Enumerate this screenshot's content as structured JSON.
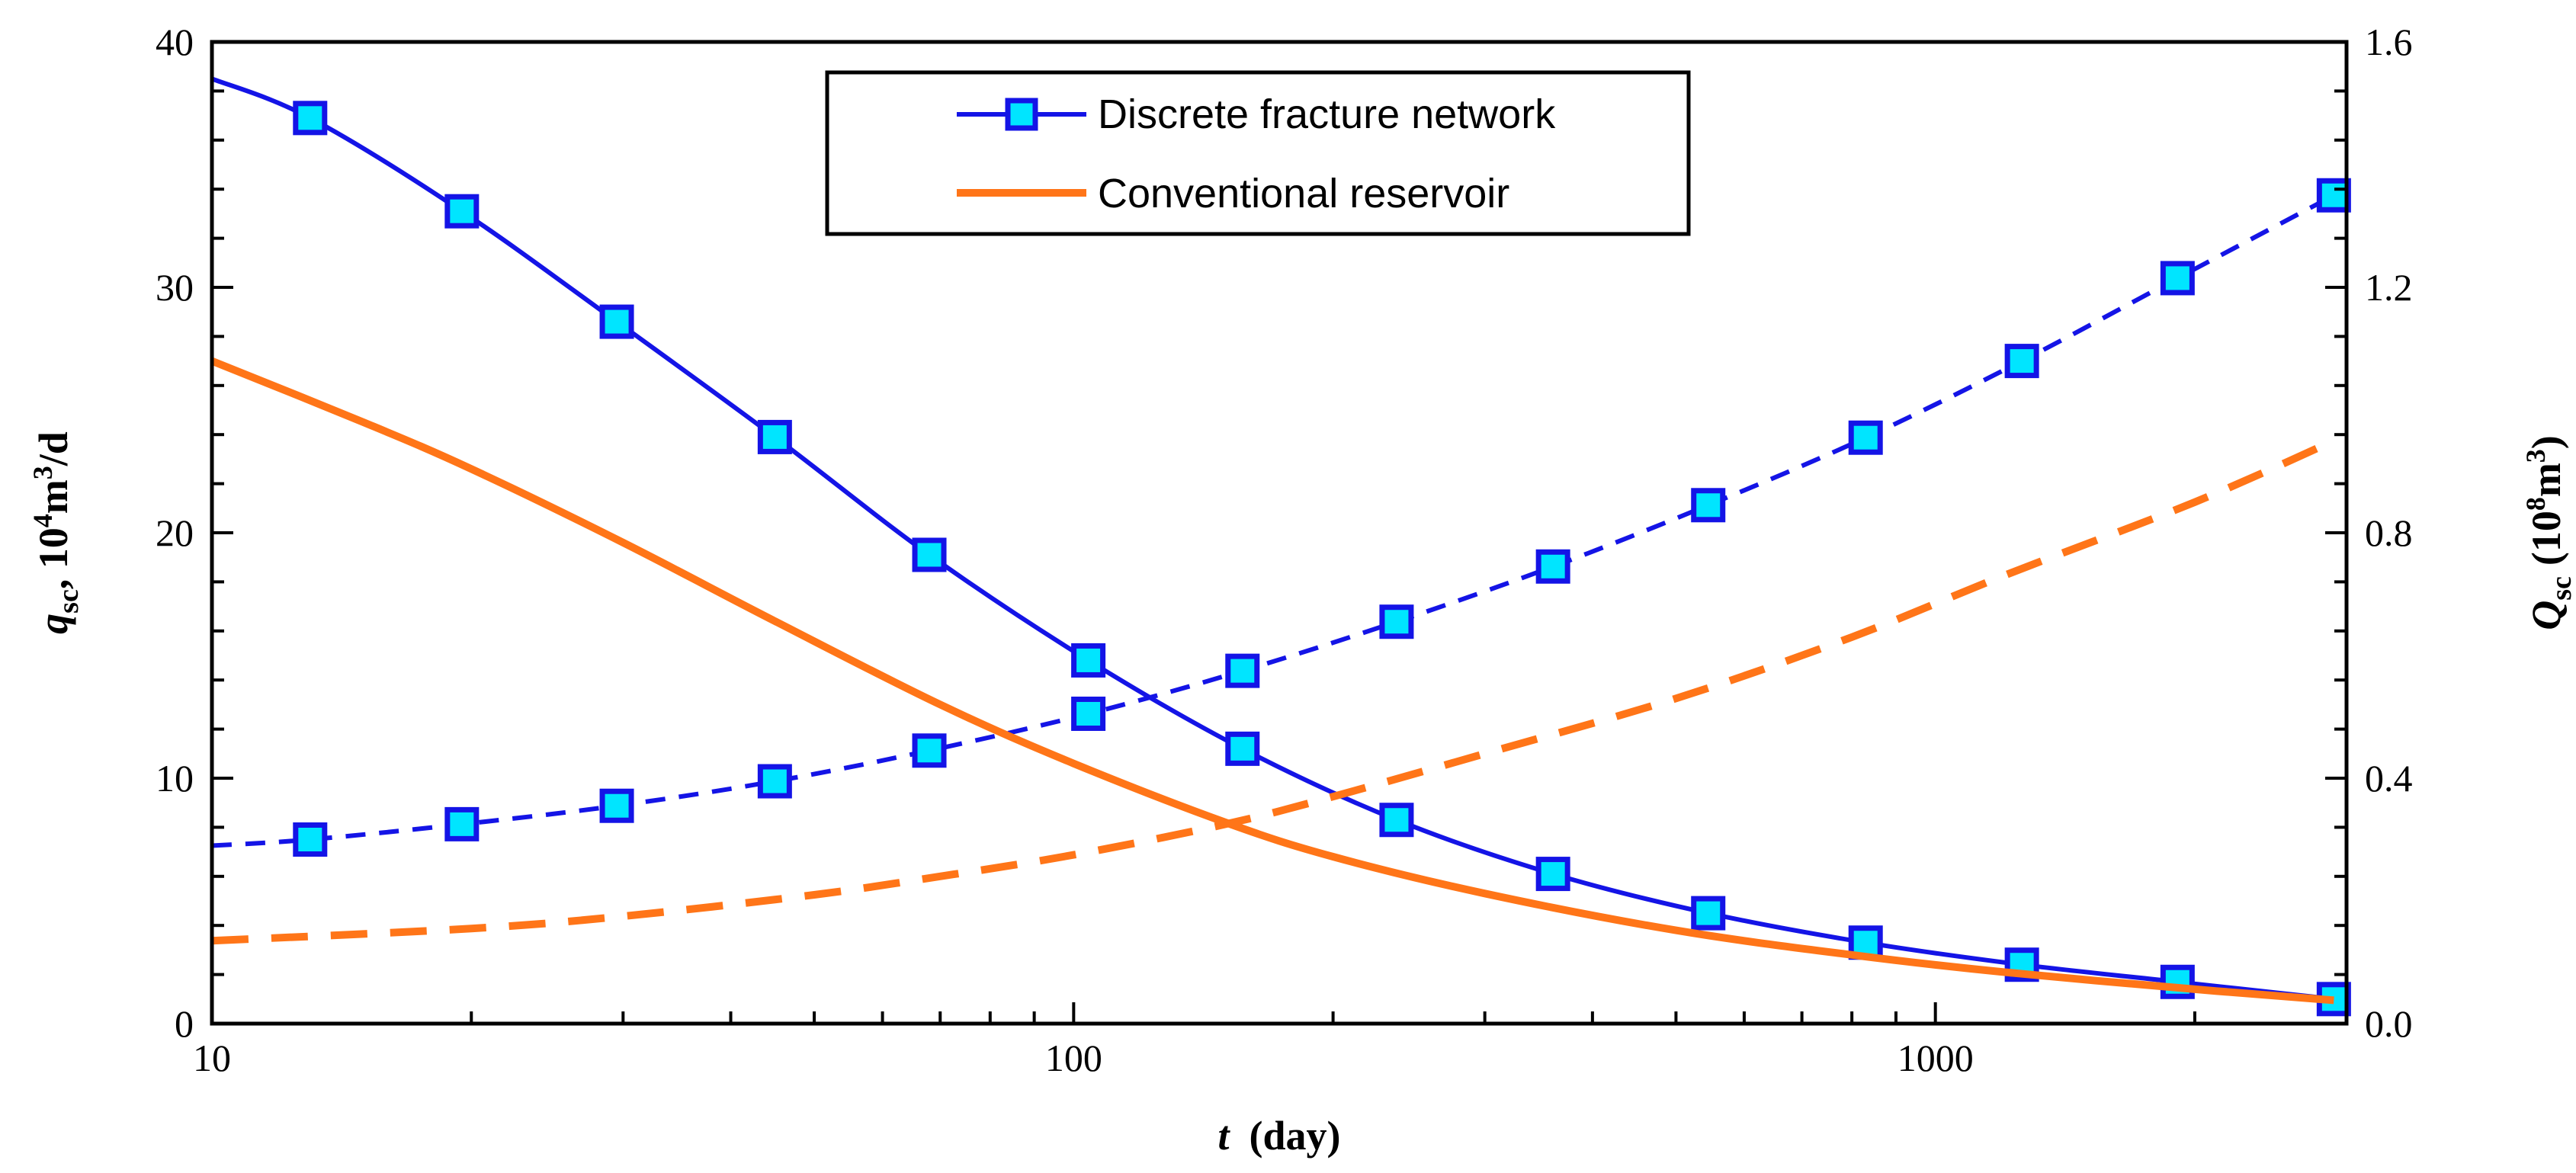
{
  "chart_data": {
    "type": "line",
    "title": "",
    "x_axis": {
      "scale": "log",
      "range": [
        10,
        3000
      ],
      "ticks": [
        10,
        100,
        1000
      ],
      "tick_labels": [
        "10",
        "100",
        "1000"
      ],
      "label_italic": "t",
      "label_rest": "(day)"
    },
    "y_left": {
      "range": [
        0,
        40
      ],
      "ticks": [
        0,
        10,
        20,
        30,
        40
      ],
      "tick_labels": [
        "0",
        "10",
        "20",
        "30",
        "40"
      ],
      "label_var": "q",
      "label_sub": "sc",
      "label_unit_a": ", 10",
      "label_unit_sup": "4",
      "label_unit_b": "m",
      "label_unit_sup2": "3",
      "label_unit_c": "/d"
    },
    "y_right": {
      "range": [
        0,
        1.6
      ],
      "ticks": [
        0,
        0.4,
        0.8,
        1.2,
        1.6
      ],
      "tick_labels": [
        "0.0",
        "0.4",
        "0.8",
        "1.2",
        "1.6"
      ],
      "label_var": "Q",
      "label_sub": "sc",
      "label_unit_a": "(10",
      "label_unit_sup": "8",
      "label_unit_b": "m",
      "label_unit_sup2": "3",
      "label_unit_c": ")"
    },
    "legend": {
      "position": "top-center",
      "entries": [
        {
          "label": "Discrete fracture network",
          "color": "#1414e6",
          "marker": "square"
        },
        {
          "label": "Conventional reservoir",
          "color": "#ff7518",
          "marker": "none"
        }
      ]
    },
    "series": [
      {
        "name": "Discrete fracture network - rate",
        "axis": "left",
        "style": "solid",
        "color": "#1414e6",
        "curve": {
          "x": [
            10,
            13,
            19.5,
            29.5,
            45,
            68,
            104,
            157,
            237,
            360,
            545,
            830,
            1260,
            1910,
            2900
          ],
          "y": [
            38.5,
            36.9,
            33.1,
            28.6,
            23.9,
            19.1,
            14.8,
            11.2,
            8.3,
            6.1,
            4.5,
            3.3,
            2.4,
            1.7,
            1.0
          ]
        },
        "markers": {
          "x": [
            13,
            19.5,
            29.5,
            45,
            68,
            104,
            157,
            237,
            360,
            545,
            830,
            1260,
            1910,
            2900
          ],
          "y": [
            36.9,
            33.1,
            28.6,
            23.9,
            19.1,
            14.8,
            11.2,
            8.3,
            6.1,
            4.5,
            3.3,
            2.4,
            1.7,
            1.0
          ]
        }
      },
      {
        "name": "Discrete fracture network - cumulative",
        "axis": "right",
        "style": "dashed",
        "color": "#1414e6",
        "curve": {
          "x": [
            10,
            13,
            19.5,
            29.5,
            45,
            68,
            104,
            157,
            237,
            360,
            545,
            830,
            1260,
            1910,
            2900
          ],
          "y": [
            0.29,
            0.3,
            0.325,
            0.355,
            0.395,
            0.445,
            0.505,
            0.575,
            0.655,
            0.745,
            0.845,
            0.955,
            1.08,
            1.215,
            1.35
          ]
        },
        "markers": {
          "x": [
            13,
            19.5,
            29.5,
            45,
            68,
            104,
            157,
            237,
            360,
            545,
            830,
            1260,
            1910,
            2900
          ],
          "y": [
            0.3,
            0.325,
            0.355,
            0.395,
            0.445,
            0.505,
            0.575,
            0.655,
            0.745,
            0.845,
            0.955,
            1.08,
            1.215,
            1.35
          ]
        }
      },
      {
        "name": "Conventional reservoir - rate",
        "axis": "left",
        "style": "solid",
        "color": "#ff7518",
        "curve": {
          "x": [
            10,
            15,
            20,
            30,
            45,
            70,
            100,
            150,
            200,
            300,
            500,
            800,
            1200,
            2000,
            2900
          ],
          "y": [
            27.0,
            24.5,
            22.6,
            19.6,
            16.4,
            13.0,
            10.6,
            8.2,
            6.8,
            5.3,
            3.8,
            2.8,
            2.1,
            1.4,
            0.95
          ]
        },
        "markers": null
      },
      {
        "name": "Conventional reservoir - cumulative",
        "axis": "right",
        "style": "dashed",
        "color": "#ff7518",
        "curve": {
          "x": [
            10,
            20,
            30,
            50,
            70,
            100,
            150,
            200,
            300,
            500,
            800,
            1200,
            2000,
            2900
          ],
          "y": [
            0.135,
            0.155,
            0.175,
            0.21,
            0.24,
            0.275,
            0.325,
            0.37,
            0.44,
            0.53,
            0.63,
            0.73,
            0.85,
            0.95
          ]
        },
        "markers": null
      }
    ]
  }
}
